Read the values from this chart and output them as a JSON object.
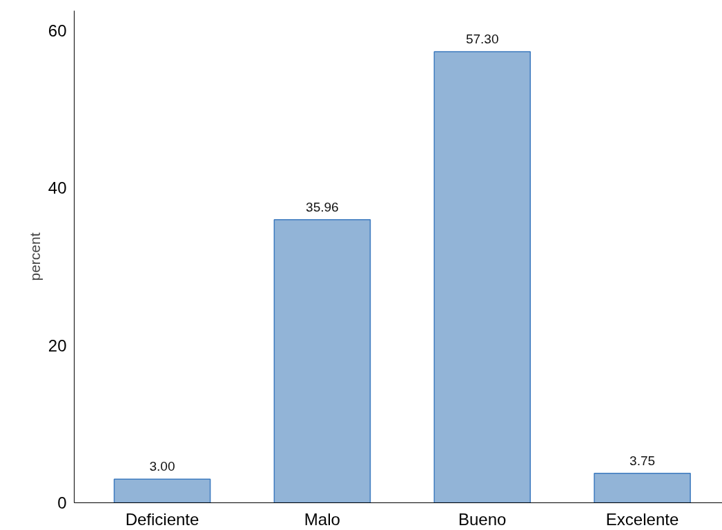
{
  "chart_data": {
    "type": "bar",
    "ylabel": "percent",
    "categories": [
      "Deficiente",
      "Malo",
      "Bueno",
      "Excelente"
    ],
    "values": [
      3.0,
      35.96,
      57.3,
      3.75
    ],
    "value_labels": [
      "3.00",
      "35.96",
      "57.30",
      "3.75"
    ],
    "color": "#92b4d7",
    "ylim": [
      0,
      62.5
    ],
    "yticks": [
      0,
      20,
      40,
      60
    ],
    "grid": false
  }
}
